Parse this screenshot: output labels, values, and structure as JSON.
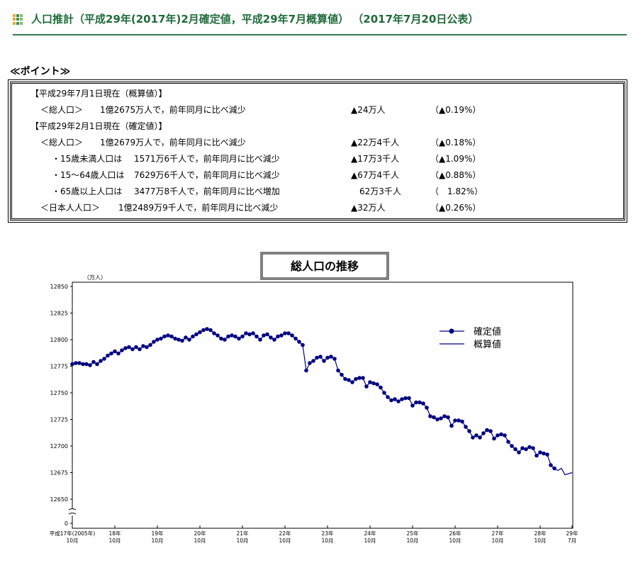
{
  "header": {
    "title": "人口推計（平成29年(2017年)2月確定値，平成29年7月概算値） （2017年7月20日公表）"
  },
  "points": {
    "title": "≪ポイント≫",
    "rows": [
      {
        "heading": "【平成29年7月1日現在（概算値）】"
      },
      {
        "label": "＜総人口＞",
        "text": "1億2675万人で，前年同月に比べ減少",
        "change": "▲24万人",
        "rate": "（▲0.19%）"
      },
      {
        "heading": "【平成29年2月1日現在（確定値）】"
      },
      {
        "label": "＜総人口＞",
        "text": "1億2679万人で，前年同月に比べ減少",
        "change": "▲22万4千人",
        "rate": "（▲0.18%）"
      },
      {
        "label": "・15歳未満人口は",
        "text": "1571万6千人で，前年同月に比べ減少",
        "change": "▲17万3千人",
        "rate": "（▲1.09%）"
      },
      {
        "label": "・15～64歳人口は",
        "text": "7629万6千人で，前年同月に比べ減少",
        "change": "▲67万4千人",
        "rate": "（▲0.88%）"
      },
      {
        "label": "・65歳以上人口は",
        "text": "3477万8千人で，前年同月に比べ増加",
        "change": "62万3千人",
        "rate": "（　1.82%）"
      },
      {
        "label": "＜日本人人口＞",
        "text": "1億2489万9千人で，前年同月に比べ減少",
        "change": "▲32万人",
        "rate": "（▲0.26%）"
      }
    ]
  },
  "chart_data": {
    "type": "line",
    "title": "総人口の推移",
    "y_label": "（万人）",
    "categories": [
      "平成17年(2005年)\n10月",
      null,
      null,
      null,
      null,
      null,
      null,
      null,
      null,
      null,
      null,
      null,
      "18年\n10月",
      null,
      null,
      null,
      null,
      null,
      null,
      null,
      null,
      null,
      null,
      null,
      "19年\n10月",
      null,
      null,
      null,
      null,
      null,
      null,
      null,
      null,
      null,
      null,
      null,
      "20年\n10月",
      null,
      null,
      null,
      null,
      null,
      null,
      null,
      null,
      null,
      null,
      null,
      "21年\n10月",
      null,
      null,
      null,
      null,
      null,
      null,
      null,
      null,
      null,
      null,
      null,
      "22年\n10月",
      null,
      null,
      null,
      null,
      null,
      null,
      null,
      null,
      null,
      null,
      null,
      "23年\n10月",
      null,
      null,
      null,
      null,
      null,
      null,
      null,
      null,
      null,
      null,
      null,
      "24年\n10月",
      null,
      null,
      null,
      null,
      null,
      null,
      null,
      null,
      null,
      null,
      null,
      "25年\n10月",
      null,
      null,
      null,
      null,
      null,
      null,
      null,
      null,
      null,
      null,
      null,
      "26年\n10月",
      null,
      null,
      null,
      null,
      null,
      null,
      null,
      null,
      null,
      null,
      null,
      "27年\n10月",
      null,
      null,
      null,
      null,
      null,
      null,
      null,
      null,
      null,
      null,
      null,
      "28年\n10月",
      null,
      null,
      null,
      null,
      null,
      null,
      null,
      null,
      "29年\n7月"
    ],
    "series": [
      {
        "name": "確定値",
        "color": "#000080",
        "markers": true,
        "values": [
          12777,
          12778,
          12778,
          12777,
          12777,
          12776,
          12779,
          12777,
          12780,
          12782,
          12785,
          12787,
          12789,
          12787,
          12790,
          12792,
          12793,
          12791,
          12793,
          12791,
          12794,
          12793,
          12795,
          12798,
          12800,
          12801,
          12803,
          12804,
          12803,
          12801,
          12800,
          12799,
          12802,
          12800,
          12803,
          12805,
          12807,
          12809,
          12810,
          12809,
          12806,
          12804,
          12801,
          12800,
          12803,
          12804,
          12803,
          12801,
          12803,
          12806,
          12805,
          12806,
          12803,
          12800,
          12804,
          12805,
          12802,
          12800,
          12803,
          12804,
          12806,
          12806,
          12804,
          12801,
          12798,
          12795,
          12771,
          12778,
          12780,
          12783,
          12784,
          12780,
          12783,
          12784,
          12782,
          12771,
          12767,
          12763,
          12762,
          12760,
          12763,
          12764,
          12764,
          12756,
          12760,
          12759,
          12758,
          12755,
          12750,
          12746,
          12743,
          12744,
          12742,
          12744,
          12745,
          12745,
          12738,
          12741,
          12741,
          12740,
          12736,
          12728,
          12727,
          12725,
          12726,
          12728,
          12727,
          12719,
          12724,
          12724,
          12723,
          12718,
          12714,
          12708,
          12710,
          12708,
          12712,
          12715,
          12714,
          12707,
          12710,
          12711,
          12710,
          12704,
          12700,
          12697,
          12694,
          12698,
          12697,
          12699,
          12698,
          12691,
          12694,
          12693,
          12692,
          12682,
          12679,
          null,
          null,
          null,
          null,
          null
        ]
      },
      {
        "name": "概算値",
        "color": "#000080",
        "markers": false,
        "values": [
          null,
          null,
          null,
          null,
          null,
          null,
          null,
          null,
          null,
          null,
          null,
          null,
          null,
          null,
          null,
          null,
          null,
          null,
          null,
          null,
          null,
          null,
          null,
          null,
          null,
          null,
          null,
          null,
          null,
          null,
          null,
          null,
          null,
          null,
          null,
          null,
          null,
          null,
          null,
          null,
          null,
          null,
          null,
          null,
          null,
          null,
          null,
          null,
          null,
          null,
          null,
          null,
          null,
          null,
          null,
          null,
          null,
          null,
          null,
          null,
          null,
          null,
          null,
          null,
          null,
          null,
          null,
          null,
          null,
          null,
          null,
          null,
          null,
          null,
          null,
          null,
          null,
          null,
          null,
          null,
          null,
          null,
          null,
          null,
          null,
          null,
          null,
          null,
          null,
          null,
          null,
          null,
          null,
          null,
          null,
          null,
          null,
          null,
          null,
          null,
          null,
          null,
          null,
          null,
          null,
          null,
          null,
          null,
          null,
          null,
          null,
          null,
          null,
          null,
          null,
          null,
          null,
          null,
          null,
          null,
          null,
          null,
          null,
          null,
          null,
          null,
          null,
          null,
          null,
          null,
          null,
          null,
          null,
          null,
          null,
          null,
          12679,
          12677,
          12679,
          12673,
          12674,
          12675
        ]
      }
    ],
    "ylim": [
      12650,
      12850
    ],
    "yticks": [
      12650,
      12675,
      12700,
      12725,
      12750,
      12775,
      12800,
      12825,
      12850
    ],
    "y_break_tick": 0,
    "grid": false
  }
}
